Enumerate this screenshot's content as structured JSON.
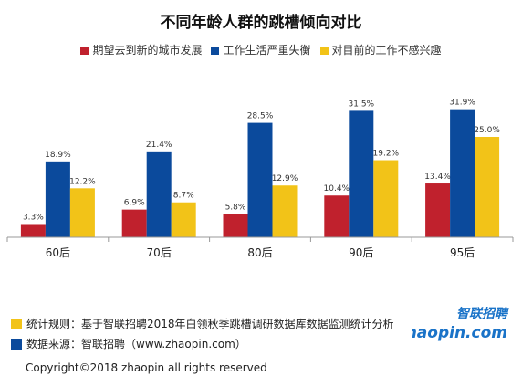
{
  "chart_data": {
    "type": "bar",
    "title": "不同年龄人群的跳槽倾向对比",
    "categories": [
      "60后",
      "70后",
      "80后",
      "90后",
      "95后"
    ],
    "series": [
      {
        "name": "期望去到新的城市发展",
        "color": "#c0212d",
        "values": [
          3.3,
          6.9,
          5.8,
          10.4,
          13.4
        ],
        "labels": [
          "3.3%",
          "6.9%",
          "5.8%",
          "10.4%",
          "13.4%"
        ]
      },
      {
        "name": "工作生活严重失衡",
        "color": "#0b4a9c",
        "values": [
          18.9,
          21.4,
          28.5,
          31.5,
          31.9
        ],
        "labels": [
          "18.9%",
          "21.4%",
          "28.5%",
          "31.5%",
          "31.9%"
        ]
      },
      {
        "name": "对目前的工作不感兴趣",
        "color": "#f2c318",
        "values": [
          12.2,
          8.7,
          12.9,
          19.2,
          25.0
        ],
        "labels": [
          "12.2%",
          "8.7%",
          "12.9%",
          "19.2%",
          "25.0%"
        ]
      }
    ],
    "ylim": [
      0,
      35
    ],
    "legend_position": "top",
    "grid": false
  },
  "footer": {
    "rule_text": "统计规则：基于智联招聘2018年白领秋季跳槽调研数据库数据监测统计分析",
    "rule_color": "#f2c318",
    "source_text": "数据来源：智联招聘（www.zhaopin.com）",
    "source_color": "#0b4a9c",
    "copyright": "Copyright©2018 zhaopin all rights reserved"
  },
  "logo": {
    "chinese": "智联招聘",
    "latin": "zhaopin.com",
    "color": "#1a73c8"
  }
}
